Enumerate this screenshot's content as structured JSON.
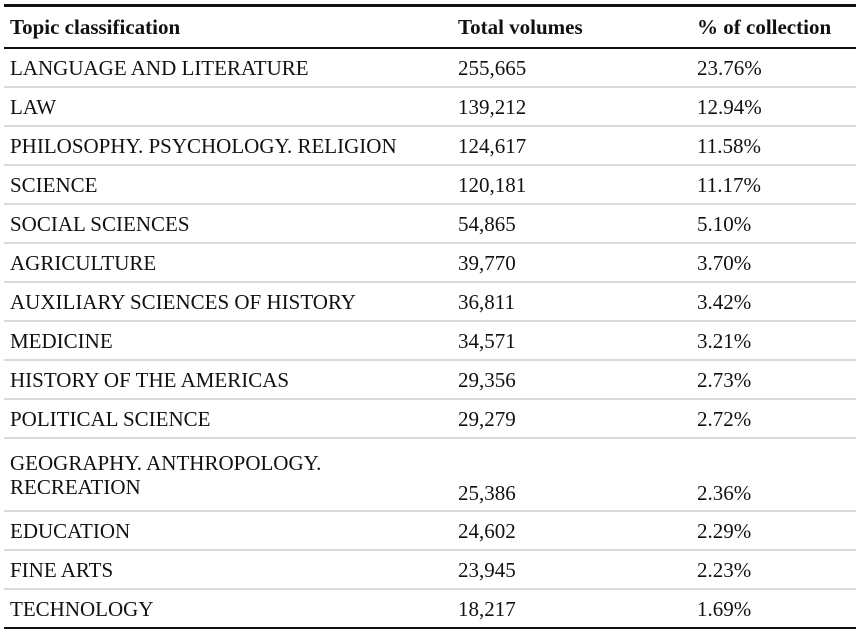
{
  "table": {
    "headers": [
      "Topic classification",
      "Total volumes",
      "% of collection"
    ],
    "rows": [
      {
        "topic": "LANGUAGE AND LITERATURE",
        "volumes": "255,665",
        "percent": "23.76%"
      },
      {
        "topic": "LAW",
        "volumes": "139,212",
        "percent": "12.94%"
      },
      {
        "topic": "PHILOSOPHY. PSYCHOLOGY. RELIGION",
        "volumes": "124,617",
        "percent": "11.58%"
      },
      {
        "topic": "SCIENCE",
        "volumes": "120,181",
        "percent": "11.17%"
      },
      {
        "topic": "SOCIAL SCIENCES",
        "volumes": "54,865",
        "percent": "5.10%"
      },
      {
        "topic": "AGRICULTURE",
        "volumes": "39,770",
        "percent": "3.70%"
      },
      {
        "topic": "AUXILIARY SCIENCES OF HISTORY",
        "volumes": "36,811",
        "percent": "3.42%"
      },
      {
        "topic": "MEDICINE",
        "volumes": "34,571",
        "percent": "3.21%"
      },
      {
        "topic": "HISTORY OF THE AMERICAS",
        "volumes": "29,356",
        "percent": "2.73%"
      },
      {
        "topic": "POLITICAL SCIENCE",
        "volumes": "29,279",
        "percent": "2.72%"
      },
      {
        "topic": "GEOGRAPHY. ANTHROPOLOGY. RECREATION",
        "volumes": "25,386",
        "percent": "2.36%"
      },
      {
        "topic": "EDUCATION",
        "volumes": "24,602",
        "percent": "2.29%"
      },
      {
        "topic": "FINE ARTS",
        "volumes": "23,945",
        "percent": "2.23%"
      },
      {
        "topic": "TECHNOLOGY",
        "volumes": "18,217",
        "percent": "1.69%"
      }
    ]
  }
}
